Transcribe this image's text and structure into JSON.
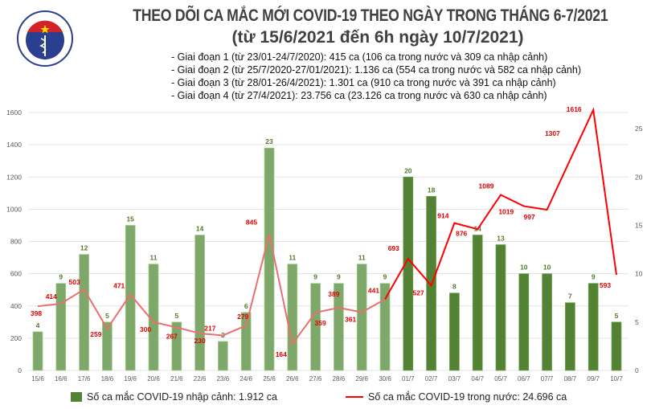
{
  "header": {
    "title": "THEO DÕI CA MẮC MỚI COVID-19 THEO NGÀY TRONG THÁNG 6-7/2021",
    "subtitle": "(từ 15/6/2021 đến 6h ngày 10/7/2021)",
    "logo_text": "BỘ Y TẾ · MINISTRY OF HEALTH",
    "notes": [
      "- Giai đoạn 1 (từ 23/01-24/7/2020): 415 ca (106 ca trong nước và 309 ca nhập cảnh)",
      "- Giai đoạn 2 (từ 25/7/2020-27/01/2021): 1.136 ca (554 ca trong nước và 582 ca nhập cảnh)",
      "- Giai đoạn 3 (từ 28/01-26/4/2021): 1.301 ca (910 ca trong nước và 391 ca nhập cảnh)",
      "- Giai đoạn 4 (từ 27/4/2021): 23.756 ca (23.126 ca trong nước và 630 ca nhập cảnh)"
    ]
  },
  "chart_data": {
    "type": "bar+line",
    "categories": [
      "15/6",
      "16/6",
      "17/6",
      "18/6",
      "19/6",
      "20/6",
      "21/6",
      "22/6",
      "23/6",
      "24/6",
      "25/6",
      "26/6",
      "27/6",
      "28/6",
      "29/6",
      "30/6",
      "01/7",
      "02/7",
      "03/7",
      "04/7",
      "05/7",
      "06/7",
      "07/7",
      "08/7",
      "09/7",
      "10/7"
    ],
    "series": [
      {
        "name": "Số ca mắc COVID-19 nhập cảnh: 1.912 ca",
        "type": "bar",
        "axis": "right",
        "values": [
          4,
          9,
          12,
          5,
          15,
          11,
          5,
          14,
          3,
          6,
          23,
          11,
          9,
          9,
          11,
          9,
          20,
          18,
          8,
          14,
          13,
          10,
          10,
          7,
          9,
          5
        ]
      },
      {
        "name": "Số ca mắc COVID-19 trong nước: 24.696 ca",
        "type": "line",
        "axis": "left",
        "values": [
          398,
          414,
          503,
          259,
          471,
          300,
          267,
          230,
          217,
          279,
          845,
          164,
          359,
          389,
          361,
          441,
          693,
          527,
          914,
          876,
          1089,
          1019,
          997,
          1307,
          1616,
          593
        ]
      }
    ],
    "left_axis": {
      "ticks": [
        0,
        200,
        400,
        600,
        800,
        1000,
        1200,
        1400,
        1600
      ],
      "range": [
        0,
        1650
      ]
    },
    "right_axis": {
      "ticks": [
        0,
        5,
        10,
        15,
        20,
        25
      ],
      "range": [
        0,
        27.5
      ]
    },
    "grid": true,
    "legend": "bottom",
    "colors": {
      "bar_early": "#7ea86a",
      "bar": "#548235",
      "line_early": "#e87070",
      "line": "#ff0000",
      "bar_label": "#4f7a2e",
      "line_label": "#e00000"
    }
  }
}
